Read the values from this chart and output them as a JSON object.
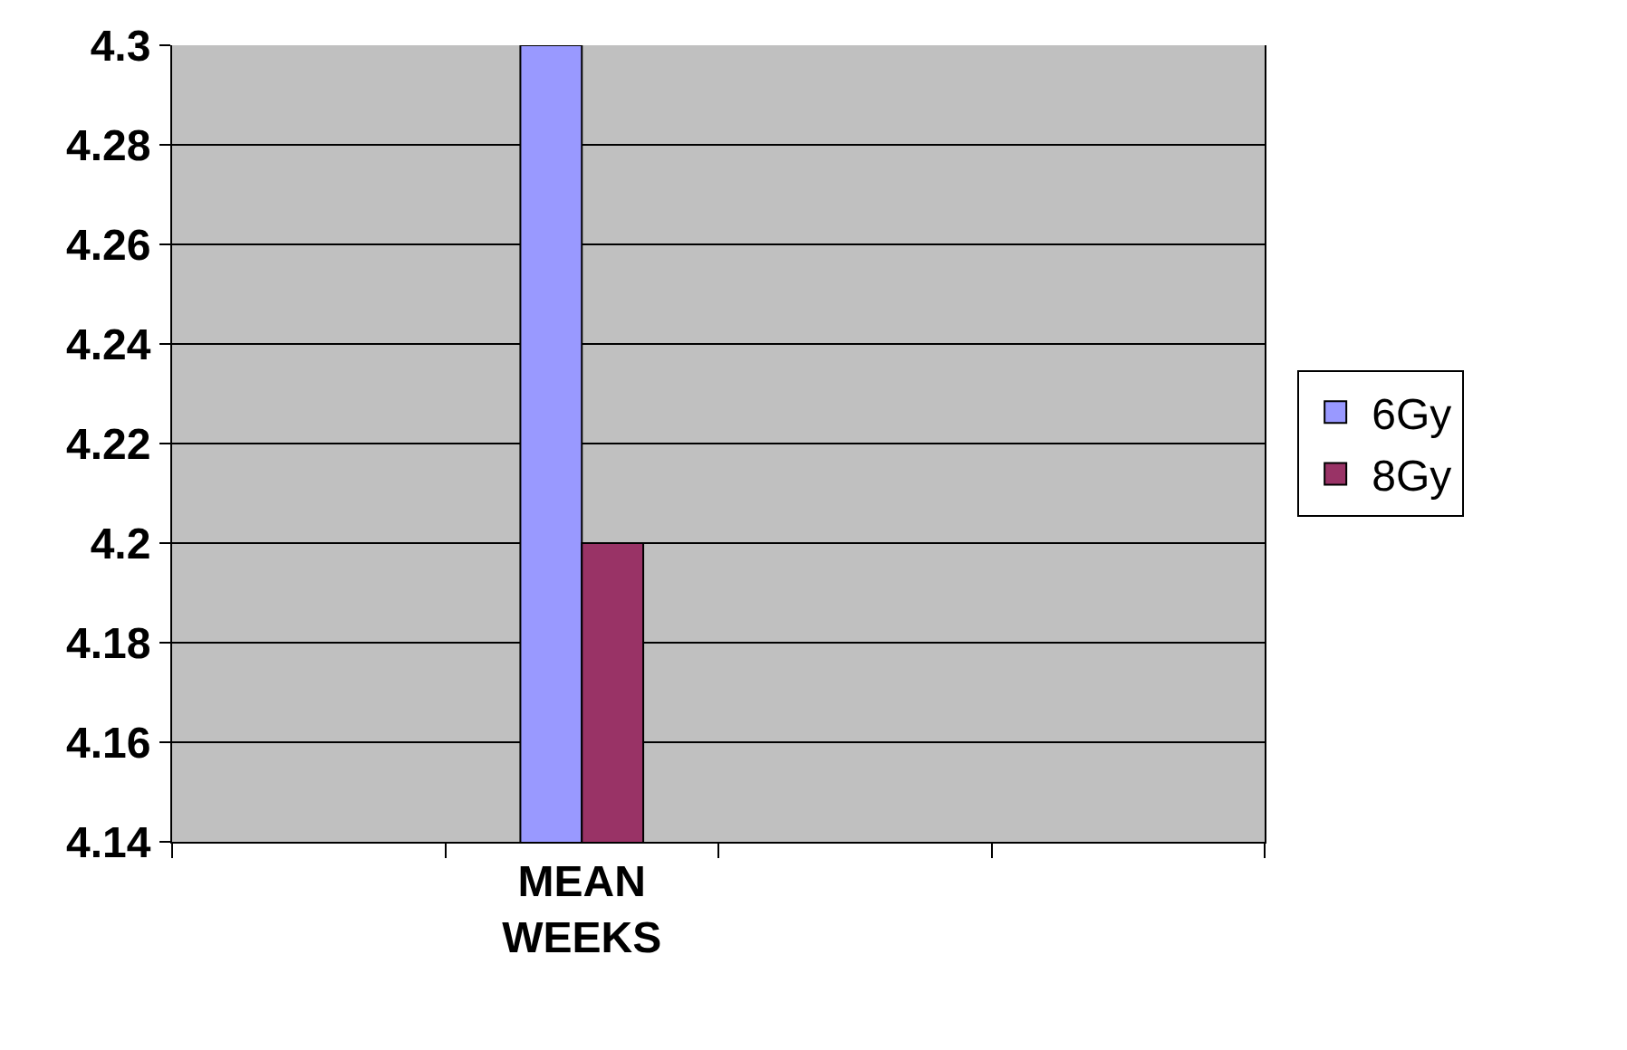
{
  "chart_data": {
    "type": "bar",
    "categories": [
      null,
      "MEAN WEEKS",
      null,
      null
    ],
    "series": [
      {
        "name": "6Gy",
        "color": "#9999ff",
        "values": [
          null,
          4.3,
          null,
          null
        ]
      },
      {
        "name": "8Gy",
        "color": "#993366",
        "values": [
          null,
          4.2,
          null,
          null
        ]
      }
    ],
    "ylim": [
      4.14,
      4.3
    ],
    "yticks": [
      4.14,
      4.16,
      4.18,
      4.2,
      4.22,
      4.24,
      4.26,
      4.28,
      4.3
    ],
    "grid": "y",
    "legend": "right"
  }
}
